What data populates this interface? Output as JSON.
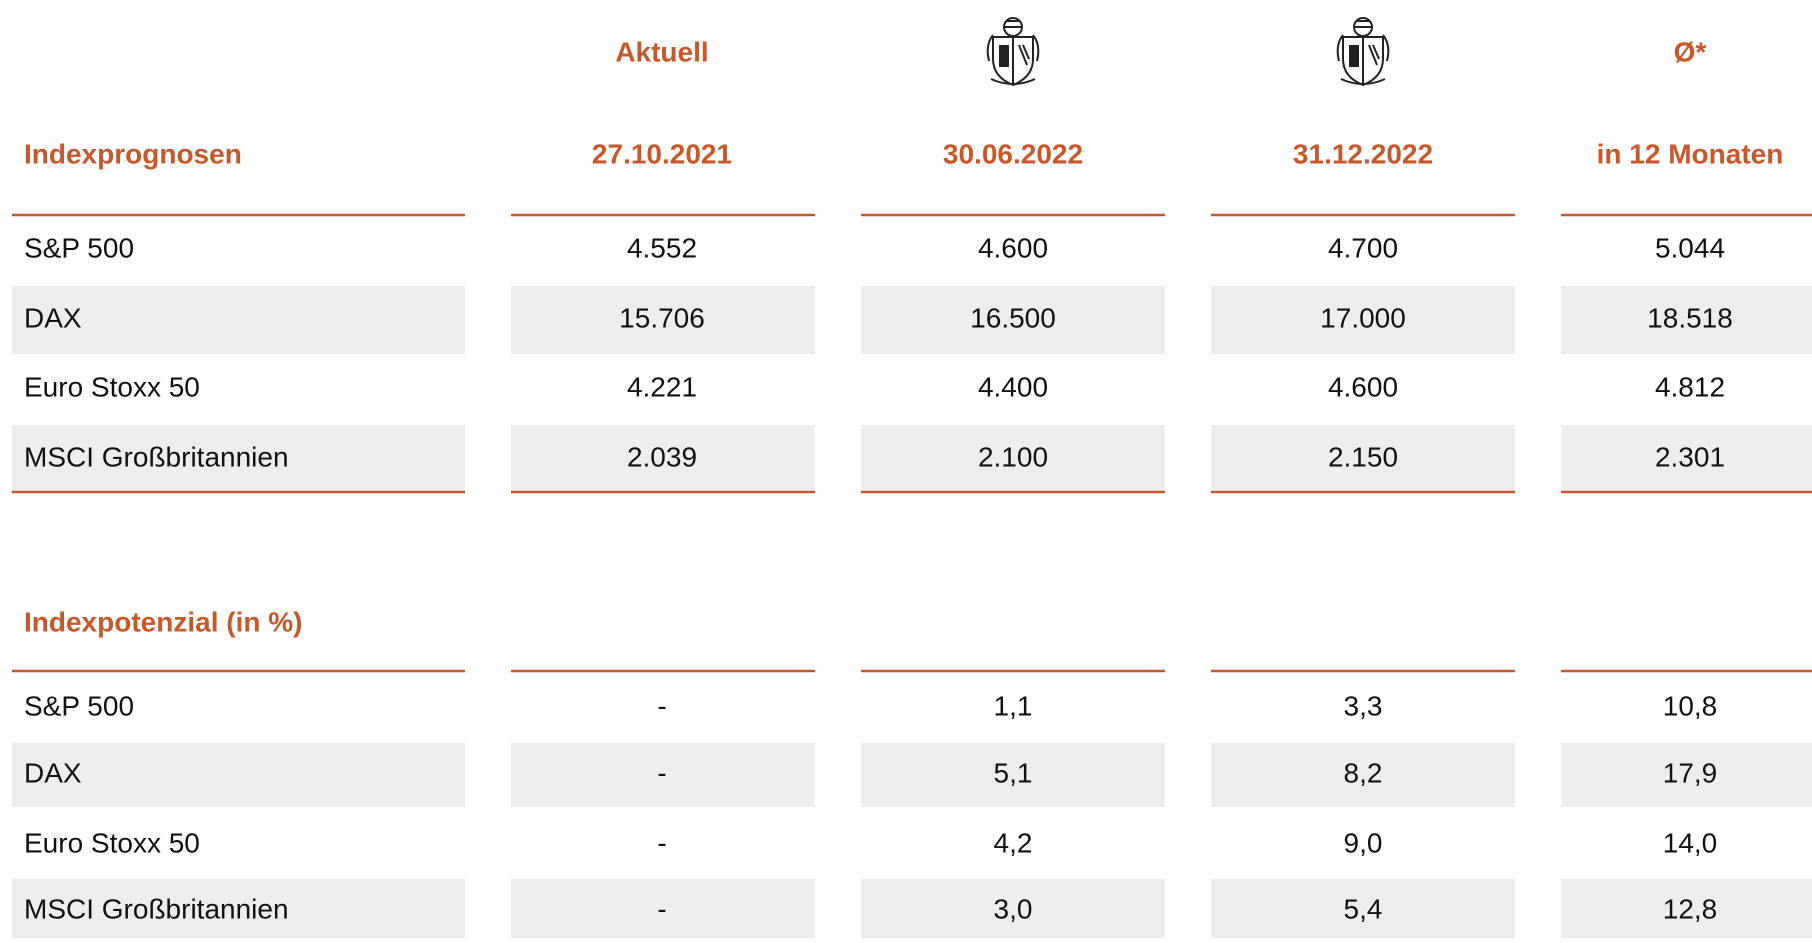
{
  "columns": [
    {
      "top": "Aktuell",
      "date": "27.10.2021"
    },
    {
      "date": "30.06.2022"
    },
    {
      "date": "31.12.2022"
    },
    {
      "top": "Ø*",
      "date": "in 12 Monaten"
    }
  ],
  "sections": [
    {
      "title": "Indexprognosen",
      "rows": [
        {
          "label": "S&P 500",
          "values": [
            "4.552",
            "4.600",
            "4.700",
            "5.044"
          ]
        },
        {
          "label": "DAX",
          "values": [
            "15.706",
            "16.500",
            "17.000",
            "18.518"
          ]
        },
        {
          "label": "Euro Stoxx 50",
          "values": [
            "4.221",
            "4.400",
            "4.600",
            "4.812"
          ]
        },
        {
          "label": "MSCI Großbritannien",
          "values": [
            "2.039",
            "2.100",
            "2.150",
            "2.301"
          ]
        }
      ]
    },
    {
      "title": "Indexpotenzial (in %)",
      "rows": [
        {
          "label": "S&P 500",
          "values": [
            "-",
            "1,1",
            "3,3",
            "10,8"
          ]
        },
        {
          "label": "DAX",
          "values": [
            "-",
            "5,1",
            "8,2",
            "17,9"
          ]
        },
        {
          "label": "Euro Stoxx 50",
          "values": [
            "-",
            "4,2",
            "9,0",
            "14,0"
          ]
        },
        {
          "label": "MSCI Großbritannien",
          "values": [
            "-",
            "3,0",
            "5,4",
            "12,8"
          ]
        }
      ]
    }
  ]
}
